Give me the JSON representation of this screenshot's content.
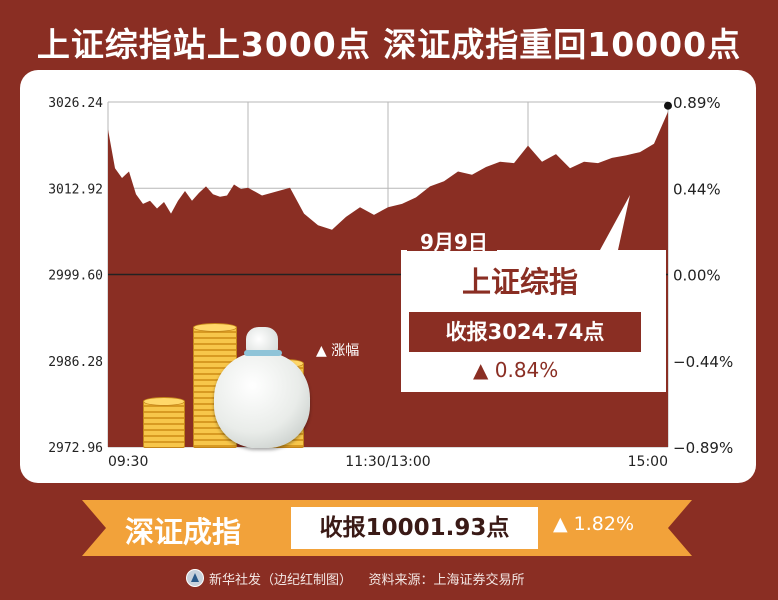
{
  "headline": "上证综指站上3000点  深证成指重回10000点",
  "chart_data": {
    "type": "area",
    "title": "",
    "xlabel": "",
    "ylabel": "",
    "x_tick_labels": [
      "09:30",
      "11:30/13:00",
      "15:00"
    ],
    "y_tick_labels": [
      "3026.24",
      "3012.92",
      "2999.60",
      "2986.28",
      "2972.96"
    ],
    "y2_tick_labels": [
      "0.89%",
      "0.44%",
      "0.00%",
      "−0.44%",
      "−0.89%"
    ],
    "ylim": [
      2972.96,
      3026.24
    ],
    "baseline": 2999.6,
    "x_minutes": [
      0,
      3,
      6,
      9,
      12,
      15,
      18,
      21,
      24,
      27,
      30,
      33,
      36,
      39,
      42,
      45,
      48,
      51,
      54,
      57,
      60,
      66,
      72,
      78,
      84,
      90,
      96,
      102,
      108,
      114,
      120,
      126,
      132,
      138,
      144,
      150,
      156,
      162,
      168,
      174,
      180,
      186,
      192,
      198,
      204,
      210,
      216,
      222,
      228,
      234,
      240
    ],
    "values": [
      3022.0,
      3016.0,
      3014.5,
      3015.5,
      3012.0,
      3010.5,
      3011.0,
      3009.8,
      3010.8,
      3009.0,
      3011.0,
      3012.5,
      3011.0,
      3012.2,
      3013.2,
      3012.0,
      3011.6,
      3011.8,
      3013.5,
      3012.8,
      3013.0,
      3011.8,
      3012.4,
      3013.0,
      3009.0,
      3007.2,
      3006.5,
      3008.5,
      3010.0,
      3008.8,
      3010.0,
      3010.5,
      3011.5,
      3013.2,
      3014.0,
      3015.5,
      3015.0,
      3016.2,
      3017.0,
      3016.8,
      3019.5,
      3017.0,
      3018.2,
      3016.0,
      3017.0,
      3016.8,
      3017.6,
      3018.0,
      3018.5,
      3019.8,
      3024.74
    ],
    "legend_label": "涨幅",
    "colors": {
      "area": "#8a2e23",
      "baseline": "#222222",
      "grid": "#b7b7b7"
    }
  },
  "callout": {
    "date": "9月9日",
    "index_name": "上证综指",
    "close": "收报3024.74点",
    "change": "0.84%",
    "change_arrow": "▲"
  },
  "banner": {
    "index_name": "深证成指",
    "close": "收报10001.93点",
    "change": "1.82%",
    "change_arrow": "▲"
  },
  "footer": {
    "credit": "新华社发（边纪红制图）",
    "source": "资料来源：上海证券交易所"
  }
}
